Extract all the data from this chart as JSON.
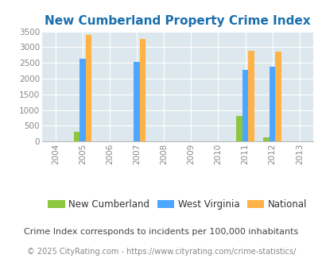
{
  "title": "New Cumberland Property Crime Index",
  "years": [
    2004,
    2005,
    2006,
    2007,
    2008,
    2009,
    2010,
    2011,
    2012,
    2013
  ],
  "xlim": [
    2003.5,
    2013.5
  ],
  "ylim": [
    0,
    3500
  ],
  "yticks": [
    0,
    500,
    1000,
    1500,
    2000,
    2500,
    3000,
    3500
  ],
  "series": {
    "New Cumberland": {
      "color": "#8dc63f",
      "data": {
        "2005": 310,
        "2011": 820,
        "2012": 120
      }
    },
    "West Virginia": {
      "color": "#4da6ff",
      "data": {
        "2005": 2630,
        "2007": 2540,
        "2011": 2280,
        "2012": 2370
      }
    },
    "National": {
      "color": "#ffb347",
      "data": {
        "2005": 3400,
        "2007": 3270,
        "2011": 2890,
        "2012": 2860
      }
    }
  },
  "bar_width": 0.22,
  "offsets": [
    -0.22,
    0.0,
    0.22
  ],
  "title_color": "#1a6fad",
  "title_fontsize": 11,
  "tick_label_color": "#888888",
  "tick_fontsize": 7.5,
  "legend_fontsize": 8.5,
  "bg_color": "#dce8ed",
  "fig_bg_color": "#ffffff",
  "grid_color": "#ffffff",
  "subtitle": "Crime Index corresponds to incidents per 100,000 inhabitants",
  "footer": "© 2025 CityRating.com - https://www.cityrating.com/crime-statistics/",
  "subtitle_color": "#444444",
  "subtitle_fontsize": 8,
  "footer_fontsize": 7,
  "footer_color": "#888888"
}
